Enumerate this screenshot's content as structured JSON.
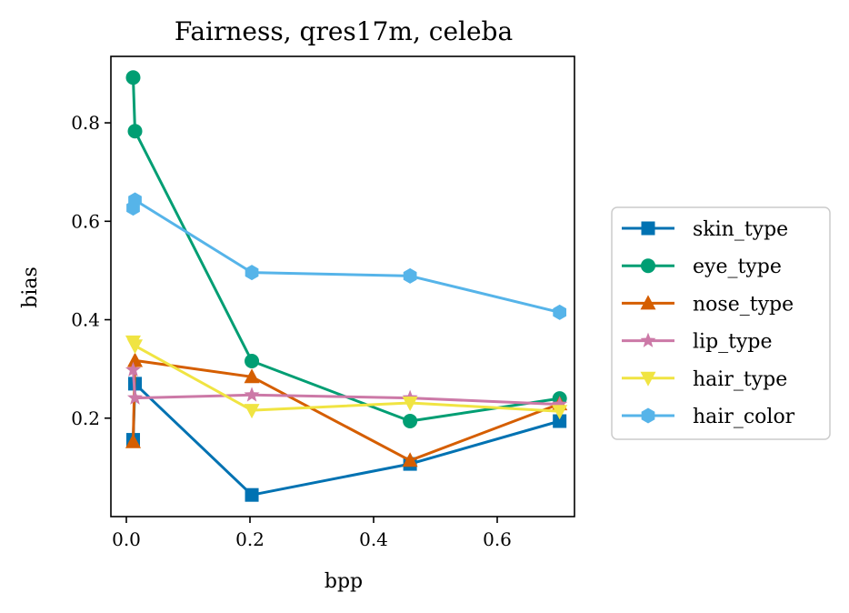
{
  "chart_data": {
    "type": "line",
    "title": "Fairness, qres17m, celeba",
    "xlabel": "bpp",
    "ylabel": "bias",
    "xlim": [
      -0.025,
      0.725
    ],
    "ylim": [
      0.0,
      0.935
    ],
    "xticks": [
      0.0,
      0.2,
      0.4,
      0.6
    ],
    "xtick_labels": [
      "0.0",
      "0.2",
      "0.4",
      "0.6"
    ],
    "yticks": [
      0.2,
      0.4,
      0.6,
      0.8
    ],
    "ytick_labels": [
      "0.2",
      "0.4",
      "0.6",
      "0.8"
    ],
    "grid": false,
    "legend_position": "outside-right",
    "series": [
      {
        "name": "skin_type",
        "color": "#0072b2",
        "marker": "square",
        "points": [
          [
            0.011,
            0.156
          ],
          [
            0.014,
            0.27
          ],
          [
            0.203,
            0.044
          ],
          [
            0.459,
            0.107
          ],
          [
            0.701,
            0.194
          ]
        ]
      },
      {
        "name": "eye_type",
        "color": "#009e73",
        "marker": "circle",
        "points": [
          [
            0.011,
            0.892
          ],
          [
            0.014,
            0.783
          ],
          [
            0.203,
            0.316
          ],
          [
            0.459,
            0.194
          ],
          [
            0.701,
            0.24
          ]
        ]
      },
      {
        "name": "nose_type",
        "color": "#d55e00",
        "marker": "triangle-up",
        "points": [
          [
            0.011,
            0.152
          ],
          [
            0.014,
            0.317
          ],
          [
            0.203,
            0.284
          ],
          [
            0.459,
            0.114
          ],
          [
            0.701,
            0.229
          ]
        ]
      },
      {
        "name": "lip_type",
        "color": "#cc79a7",
        "marker": "star",
        "points": [
          [
            0.011,
            0.298
          ],
          [
            0.014,
            0.241
          ],
          [
            0.203,
            0.247
          ],
          [
            0.459,
            0.241
          ],
          [
            0.701,
            0.228
          ]
        ]
      },
      {
        "name": "hair_type",
        "color": "#f0e442",
        "marker": "triangle-down",
        "points": [
          [
            0.011,
            0.355
          ],
          [
            0.014,
            0.347
          ],
          [
            0.203,
            0.216
          ],
          [
            0.459,
            0.231
          ],
          [
            0.701,
            0.214
          ]
        ]
      },
      {
        "name": "hair_color",
        "color": "#56b4e9",
        "marker": "hexagon",
        "points": [
          [
            0.011,
            0.627
          ],
          [
            0.014,
            0.643
          ],
          [
            0.203,
            0.496
          ],
          [
            0.459,
            0.489
          ],
          [
            0.701,
            0.415
          ]
        ]
      }
    ]
  }
}
